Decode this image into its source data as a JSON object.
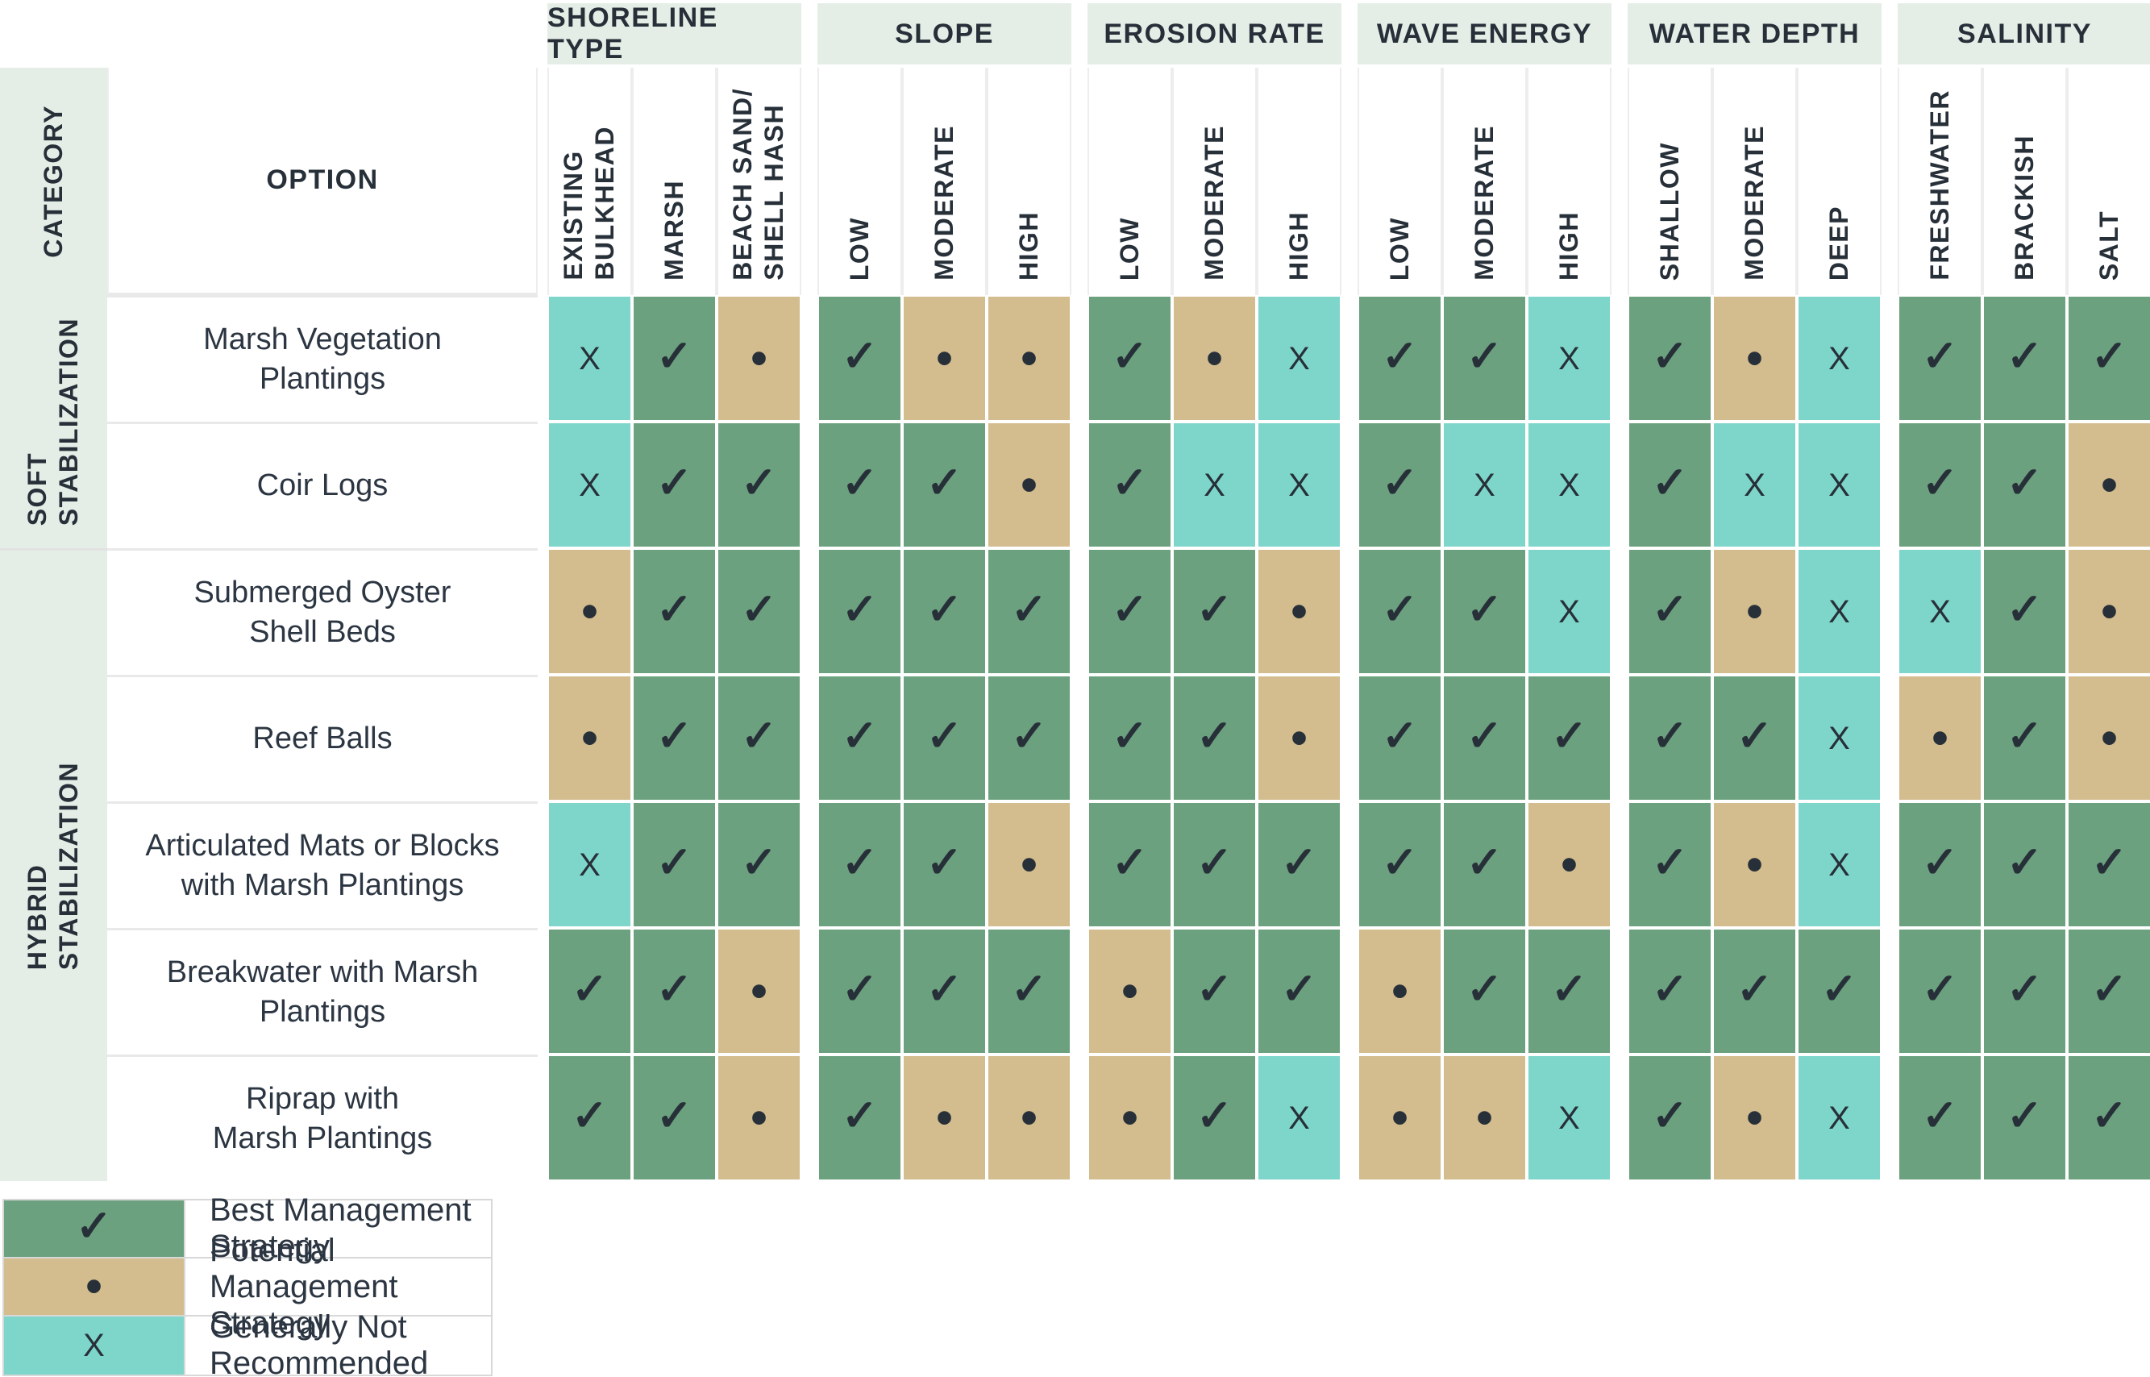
{
  "corner": {
    "category": "CATEGORY",
    "option": "OPTION"
  },
  "categories": [
    {
      "label": "SOFT\nSTABILIZATION",
      "row_start": 3,
      "row_span": 2
    },
    {
      "label": "HYBRID\nSTABILIZATION",
      "row_start": 5,
      "row_span": 5
    }
  ],
  "colors": {
    "best": "#6BA17E",
    "potential": "#D3BC8D",
    "not_recommended": "#7ED6CB",
    "header_bg": "#E5EEE6",
    "text": "#273039"
  },
  "mark_glyphs": {
    "best": "✓",
    "potential": "•",
    "not_recommended": "X"
  },
  "legend": [
    {
      "key": "best",
      "symbol": "✓",
      "label": "Best Management Strategy"
    },
    {
      "key": "potential",
      "symbol": "•",
      "label": "Potential Management Strategy"
    },
    {
      "key": "not_recommended",
      "symbol": "X",
      "label": "Generally Not Recommended"
    }
  ],
  "chart_data": {
    "type": "heatmap",
    "title": "",
    "value_legend": {
      "best": "Best Management Strategy",
      "potential": "Potential Management Strategy",
      "not_recommended": "Generally Not Recommended"
    },
    "column_groups": [
      {
        "group": "SHORELINE TYPE",
        "columns": [
          "EXISTING\nBULKHEAD",
          "MARSH",
          "BEACH SAND/\nSHELL HASH"
        ]
      },
      {
        "group": "SLOPE",
        "columns": [
          "LOW",
          "MODERATE",
          "HIGH"
        ]
      },
      {
        "group": "EROSION RATE",
        "columns": [
          "LOW",
          "MODERATE",
          "HIGH"
        ]
      },
      {
        "group": "WAVE ENERGY",
        "columns": [
          "LOW",
          "MODERATE",
          "HIGH"
        ]
      },
      {
        "group": "WATER DEPTH",
        "columns": [
          "SHALLOW",
          "MODERATE",
          "DEEP"
        ]
      },
      {
        "group": "SALINITY",
        "columns": [
          "FRESHWATER",
          "BRACKISH",
          "SALT"
        ]
      }
    ],
    "rows": [
      {
        "category": "SOFT STABILIZATION",
        "option": "Marsh Vegetation\nPlantings",
        "values": [
          "not_recommended",
          "best",
          "potential",
          "best",
          "potential",
          "potential",
          "best",
          "potential",
          "not_recommended",
          "best",
          "best",
          "not_recommended",
          "best",
          "potential",
          "not_recommended",
          "best",
          "best",
          "best"
        ]
      },
      {
        "category": "SOFT STABILIZATION",
        "option": "Coir Logs",
        "values": [
          "not_recommended",
          "best",
          "best",
          "best",
          "best",
          "potential",
          "best",
          "not_recommended",
          "not_recommended",
          "best",
          "not_recommended",
          "not_recommended",
          "best",
          "not_recommended",
          "not_recommended",
          "best",
          "best",
          "potential"
        ]
      },
      {
        "category": "HYBRID STABILIZATION",
        "option": "Submerged Oyster\nShell Beds",
        "values": [
          "potential",
          "best",
          "best",
          "best",
          "best",
          "best",
          "best",
          "best",
          "potential",
          "best",
          "best",
          "not_recommended",
          "best",
          "potential",
          "not_recommended",
          "not_recommended",
          "best",
          "potential"
        ]
      },
      {
        "category": "HYBRID STABILIZATION",
        "option": "Reef Balls",
        "values": [
          "potential",
          "best",
          "best",
          "best",
          "best",
          "best",
          "best",
          "best",
          "potential",
          "best",
          "best",
          "best",
          "best",
          "best",
          "not_recommended",
          "potential",
          "best",
          "potential"
        ]
      },
      {
        "category": "HYBRID STABILIZATION",
        "option": "Articulated Mats or Blocks\nwith Marsh Plantings",
        "values": [
          "not_recommended",
          "best",
          "best",
          "best",
          "best",
          "potential",
          "best",
          "best",
          "best",
          "best",
          "best",
          "potential",
          "best",
          "potential",
          "not_recommended",
          "best",
          "best",
          "best"
        ]
      },
      {
        "category": "HYBRID STABILIZATION",
        "option": "Breakwater with Marsh\nPlantings",
        "values": [
          "best",
          "best",
          "potential",
          "best",
          "best",
          "best",
          "potential",
          "best",
          "best",
          "potential",
          "best",
          "best",
          "best",
          "best",
          "best",
          "best",
          "best",
          "best"
        ]
      },
      {
        "category": "HYBRID STABILIZATION",
        "option": "Riprap with\nMarsh Plantings",
        "values": [
          "best",
          "best",
          "potential",
          "best",
          "potential",
          "potential",
          "potential",
          "best",
          "not_recommended",
          "potential",
          "potential",
          "not_recommended",
          "best",
          "potential",
          "not_recommended",
          "best",
          "best",
          "best"
        ]
      }
    ]
  }
}
